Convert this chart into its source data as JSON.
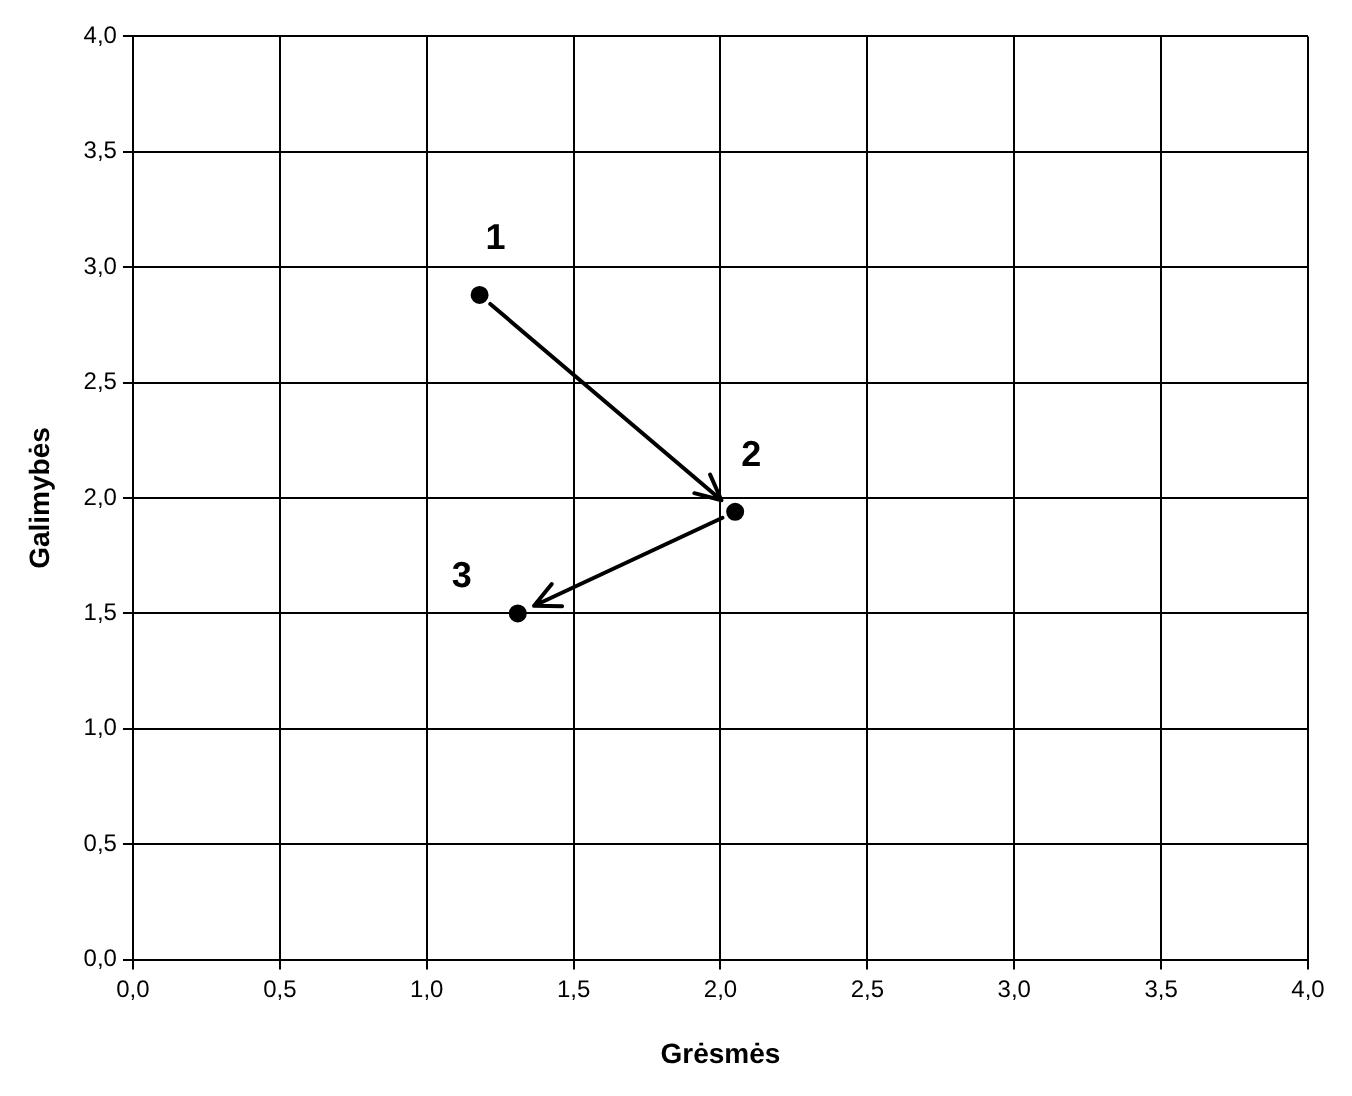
{
  "chart_data": {
    "type": "scatter",
    "xlabel": "Grėsmės",
    "ylabel": "Galimybės",
    "x": [
      1.18,
      2.05,
      1.31
    ],
    "values": [
      2.88,
      1.94,
      1.5
    ],
    "color": "#000000",
    "marker": "circle",
    "grid": true,
    "legend": false,
    "xlim": [
      0,
      4
    ],
    "ylim": [
      0,
      4
    ],
    "xticks": [
      {
        "value": 0,
        "label": "0,0"
      },
      {
        "value": 0.5,
        "label": "0,5"
      },
      {
        "value": 1,
        "label": "1,0"
      },
      {
        "value": 1.5,
        "label": "1,5"
      },
      {
        "value": 2,
        "label": "2,0"
      },
      {
        "value": 2.5,
        "label": "2,5"
      },
      {
        "value": 3,
        "label": "3,0"
      },
      {
        "value": 3.5,
        "label": "3,5"
      },
      {
        "value": 4,
        "label": "4,0"
      }
    ],
    "yticks": [
      {
        "value": 0,
        "label": "0,0"
      },
      {
        "value": 0.5,
        "label": "0,5"
      },
      {
        "value": 1,
        "label": "1,0"
      },
      {
        "value": 1.5,
        "label": "1,5"
      },
      {
        "value": 2,
        "label": "2,0"
      },
      {
        "value": 2.5,
        "label": "2,5"
      },
      {
        "value": 3,
        "label": "3,0"
      },
      {
        "value": 3.5,
        "label": "3,5"
      },
      {
        "value": 4,
        "label": "4,0"
      }
    ],
    "annotations": [
      {
        "text": "1",
        "x": 1.18,
        "y": 2.88
      },
      {
        "text": "2",
        "x": 2.05,
        "y": 1.94
      },
      {
        "text": "3",
        "x": 1.31,
        "y": 1.5
      }
    ]
  }
}
